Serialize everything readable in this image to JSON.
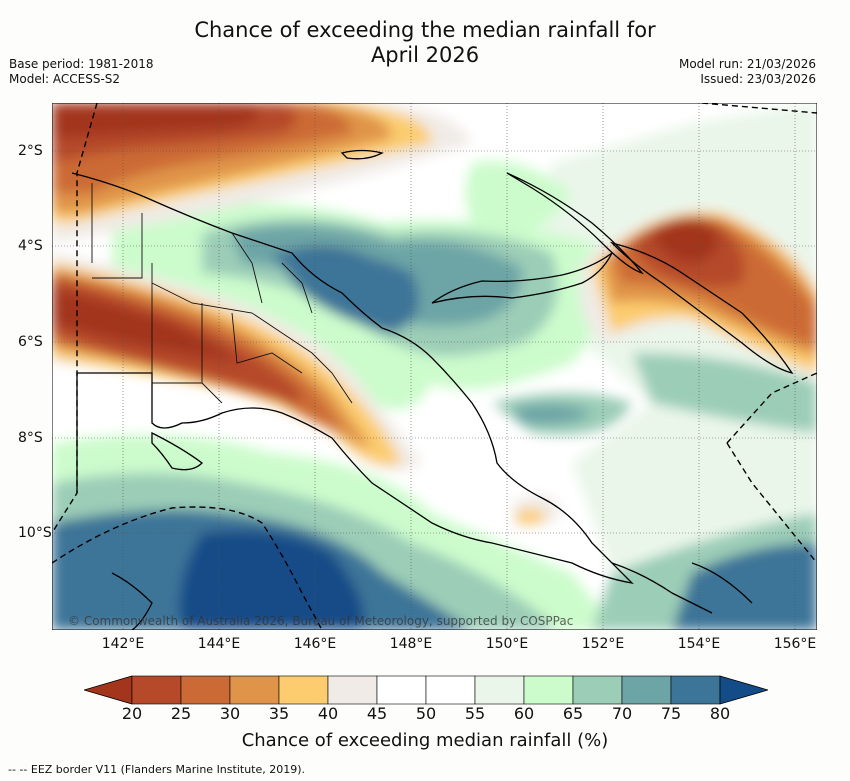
{
  "header": {
    "title_line1": "Chance of exceeding the median rainfall for",
    "title_line2": "April 2026",
    "base_period": "Base period: 1981-2018",
    "model": "Model: ACCESS-S2",
    "model_run": "Model run: 21/03/2026",
    "issued": "Issued: 23/03/2026"
  },
  "map": {
    "x_ticks": [
      "142°E",
      "144°E",
      "146°E",
      "148°E",
      "150°E",
      "152°E",
      "154°E",
      "156°E"
    ],
    "y_ticks": [
      "2°S",
      "4°S",
      "6°S",
      "8°S",
      "10°S"
    ],
    "copyright": "© Commonwealth of Australia 2026, Bureau of Meteorology, supported by COSPPac"
  },
  "colorbar": {
    "labels": [
      "20",
      "25",
      "30",
      "35",
      "40",
      "45",
      "50",
      "55",
      "60",
      "65",
      "70",
      "75",
      "80"
    ],
    "colors": [
      "#a3351d",
      "#b5492a",
      "#cc6a35",
      "#e0944a",
      "#fccc6e",
      "#f0ebe6",
      "#ffffff",
      "#ffffff",
      "#eaf6ea",
      "#ccfccc",
      "#9bcdb7",
      "#6da4a6",
      "#3c7598",
      "#134c87"
    ],
    "title": "Chance of exceeding median rainfall (%)"
  },
  "legend": {
    "eez_text": "-- -- EEZ border V11 (Flanders Marine Institute, 2019)."
  }
}
